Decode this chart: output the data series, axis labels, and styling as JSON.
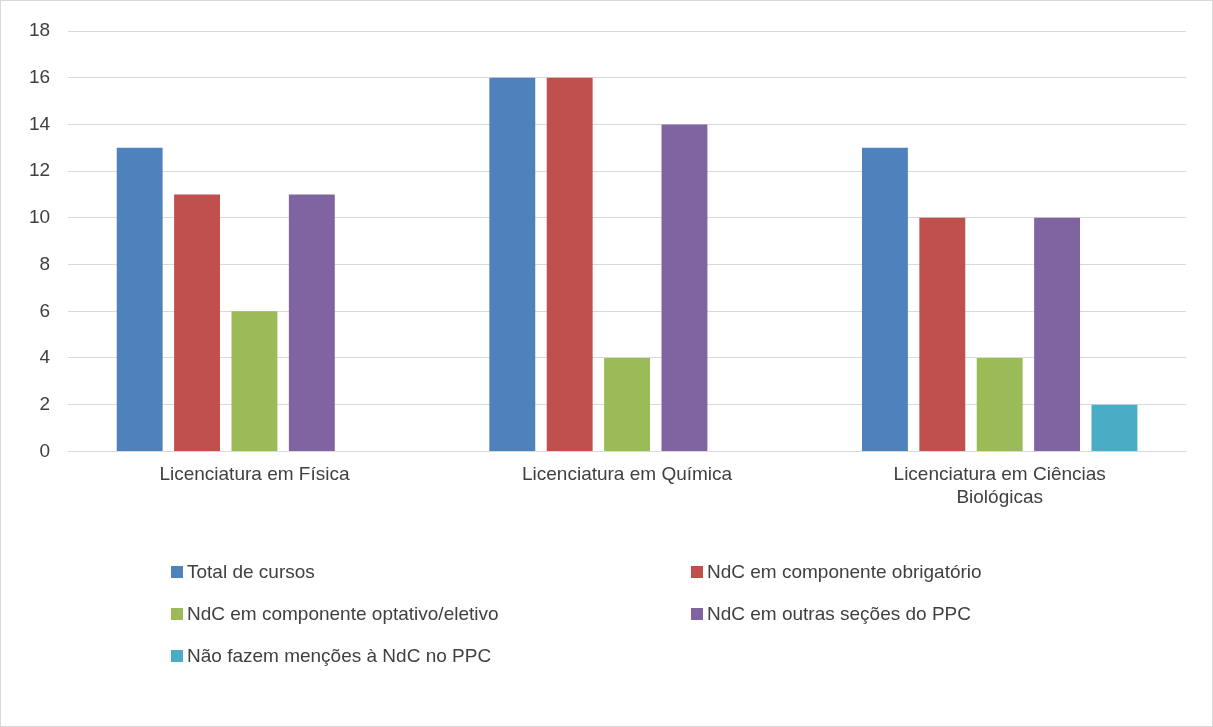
{
  "chart_data": {
    "type": "bar",
    "categories": [
      "Licenciatura em Física",
      "Licenciatura em Química",
      "Licenciatura em Ciências Biológicas"
    ],
    "series": [
      {
        "name": "Total de cursos",
        "color": "#4f81bd",
        "values": [
          13,
          16,
          13
        ]
      },
      {
        "name": "NdC em componente obrigatório",
        "color": "#c0504d",
        "values": [
          11,
          16,
          10
        ]
      },
      {
        "name": "NdC em componente optativo/eletivo",
        "color": "#9bbb59",
        "values": [
          6,
          4,
          4
        ]
      },
      {
        "name": "NdC em outras seções do PPC",
        "color": "#8064a2",
        "values": [
          11,
          14,
          10
        ]
      },
      {
        "name": "Não fazem menções à NdC no PPC",
        "color": "#4bacc6",
        "values": [
          0,
          0,
          2
        ]
      }
    ],
    "ylim": [
      0,
      18
    ],
    "yticks": [
      0,
      2,
      4,
      6,
      8,
      10,
      12,
      14,
      16,
      18
    ],
    "grid": "y",
    "legend": "bottom"
  }
}
